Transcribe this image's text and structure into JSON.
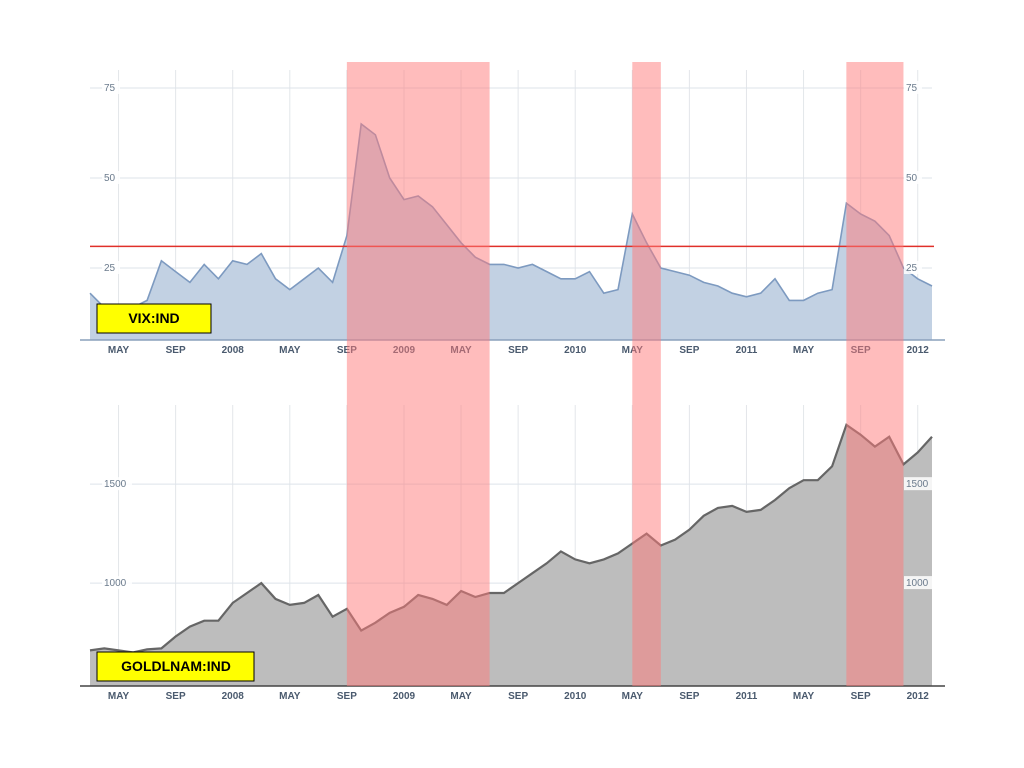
{
  "chart_data": [
    {
      "type": "area",
      "label": "VIX:IND",
      "colors": {
        "fill": "#c2d1e3",
        "line": "#7d9ac0",
        "threshold": "#e0302a",
        "highlight": "#ff7a7a"
      },
      "ylim": [
        5,
        80
      ],
      "y_ticks": [
        25,
        50,
        75
      ],
      "threshold": 31,
      "x_tick_labels": [
        "MAY",
        "SEP",
        "2008",
        "MAY",
        "SEP",
        "2009",
        "MAY",
        "SEP",
        "2010",
        "MAY",
        "SEP",
        "2011",
        "MAY",
        "SEP",
        "2012"
      ],
      "series": [
        {
          "x": [
            "2007-03",
            "2007-04",
            "2007-05",
            "2007-06",
            "2007-07",
            "2007-08",
            "2007-09",
            "2007-10",
            "2007-11",
            "2007-12",
            "2008-01",
            "2008-02",
            "2008-03",
            "2008-04",
            "2008-05",
            "2008-06",
            "2008-07",
            "2008-08",
            "2008-09",
            "2008-10",
            "2008-11",
            "2008-12",
            "2009-01",
            "2009-02",
            "2009-03",
            "2009-04",
            "2009-05",
            "2009-06",
            "2009-07",
            "2009-08",
            "2009-09",
            "2009-10",
            "2009-11",
            "2009-12",
            "2010-01",
            "2010-02",
            "2010-03",
            "2010-04",
            "2010-05",
            "2010-06",
            "2010-07",
            "2010-08",
            "2010-09",
            "2010-10",
            "2010-11",
            "2010-12",
            "2011-01",
            "2011-02",
            "2011-03",
            "2011-04",
            "2011-05",
            "2011-06",
            "2011-07",
            "2011-08",
            "2011-09",
            "2011-10",
            "2011-11",
            "2011-12",
            "2012-01",
            "2012-02"
          ],
          "values": [
            18,
            14,
            13,
            14,
            16,
            27,
            24,
            21,
            26,
            22,
            27,
            26,
            29,
            22,
            19,
            22,
            25,
            21,
            34,
            65,
            62,
            50,
            44,
            45,
            42,
            37,
            32,
            28,
            26,
            26,
            25,
            26,
            24,
            22,
            22,
            24,
            18,
            19,
            40,
            32,
            25,
            24,
            23,
            21,
            20,
            18,
            17,
            18,
            22,
            16,
            16,
            18,
            19,
            43,
            40,
            38,
            34,
            25,
            22,
            20
          ]
        }
      ]
    },
    {
      "type": "area",
      "label": "GOLDLNAM:IND",
      "colors": {
        "fill": "#bdbdbd",
        "line": "#666666",
        "highlight": "#ff7a7a"
      },
      "ylim": [
        480,
        1900
      ],
      "y_ticks": [
        1000,
        1500
      ],
      "x_tick_labels": [
        "MAY",
        "SEP",
        "2008",
        "MAY",
        "SEP",
        "2009",
        "MAY",
        "SEP",
        "2010",
        "MAY",
        "SEP",
        "2011",
        "MAY",
        "SEP",
        "2012"
      ],
      "series": [
        {
          "x": [
            "2007-03",
            "2007-04",
            "2007-05",
            "2007-06",
            "2007-07",
            "2007-08",
            "2007-09",
            "2007-10",
            "2007-11",
            "2007-12",
            "2008-01",
            "2008-02",
            "2008-03",
            "2008-04",
            "2008-05",
            "2008-06",
            "2008-07",
            "2008-08",
            "2008-09",
            "2008-10",
            "2008-11",
            "2008-12",
            "2009-01",
            "2009-02",
            "2009-03",
            "2009-04",
            "2009-05",
            "2009-06",
            "2009-07",
            "2009-08",
            "2009-09",
            "2009-10",
            "2009-11",
            "2009-12",
            "2010-01",
            "2010-02",
            "2010-03",
            "2010-04",
            "2010-05",
            "2010-06",
            "2010-07",
            "2010-08",
            "2010-09",
            "2010-10",
            "2010-11",
            "2010-12",
            "2011-01",
            "2011-02",
            "2011-03",
            "2011-04",
            "2011-05",
            "2011-06",
            "2011-07",
            "2011-08",
            "2011-09",
            "2011-10",
            "2011-11",
            "2011-12",
            "2012-01",
            "2012-02"
          ],
          "values": [
            660,
            670,
            660,
            650,
            665,
            670,
            730,
            780,
            810,
            810,
            900,
            950,
            1000,
            920,
            890,
            900,
            940,
            830,
            870,
            760,
            800,
            850,
            880,
            940,
            920,
            890,
            960,
            930,
            950,
            950,
            1000,
            1050,
            1100,
            1160,
            1120,
            1100,
            1120,
            1150,
            1200,
            1250,
            1190,
            1220,
            1270,
            1340,
            1380,
            1390,
            1360,
            1370,
            1420,
            1480,
            1520,
            1520,
            1590,
            1800,
            1750,
            1690,
            1740,
            1600,
            1660,
            1740
          ]
        }
      ]
    }
  ],
  "highlight_periods": [
    {
      "start": "2008-09",
      "end": "2009-07"
    },
    {
      "start": "2010-05",
      "end": "2010-07"
    },
    {
      "start": "2011-08",
      "end": "2011-12"
    }
  ]
}
